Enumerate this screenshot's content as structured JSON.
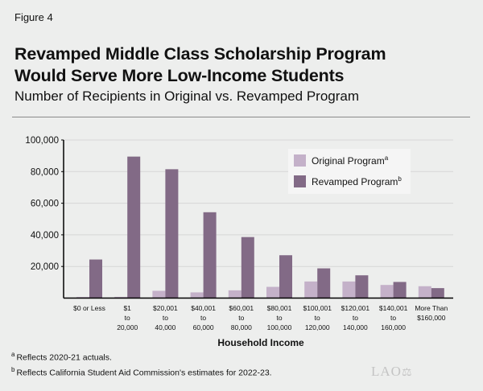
{
  "figure_label": "Figure 4",
  "title_line1": "Revamped Middle Class Scholarship Program",
  "title_line2": "Would Serve More Low-Income Students",
  "subtitle": "Number of Recipients in Original vs. Revamped Program",
  "chart_data": {
    "type": "bar",
    "xlabel": "Household Income",
    "ylabel": "",
    "ylim": [
      0,
      100000
    ],
    "yticks": [
      20000,
      40000,
      60000,
      80000,
      100000
    ],
    "ytick_labels": [
      "20,000",
      "40,000",
      "60,000",
      "80,000",
      "100,000"
    ],
    "grid": true,
    "legend_position": "top-right",
    "categories": [
      [
        "$0 or Less"
      ],
      [
        "$1",
        "to",
        "20,000"
      ],
      [
        "$20,001",
        "to",
        "40,000"
      ],
      [
        "$40,001",
        "to",
        "60,000"
      ],
      [
        "$60,001",
        "to",
        "80,000"
      ],
      [
        "$80,001",
        "to",
        "100,000"
      ],
      [
        "$100,001",
        "to",
        "120,000"
      ],
      [
        "$120,001",
        "to",
        "140,000"
      ],
      [
        "$140,001",
        "to",
        "160,000"
      ],
      [
        "More Than",
        "$160,000"
      ]
    ],
    "series": [
      {
        "name": "Original Program",
        "footnote": "a",
        "color": "#c4b1c9",
        "values": [
          700,
          800,
          4600,
          3600,
          4900,
          7100,
          10500,
          10500,
          8300,
          7500
        ]
      },
      {
        "name": "Revamped Program",
        "footnote": "b",
        "color": "#826a86",
        "values": [
          24400,
          89500,
          81500,
          54300,
          38600,
          27100,
          18800,
          14400,
          10200,
          6300
        ]
      }
    ]
  },
  "footnotes": [
    {
      "marker": "a",
      "text": "Reflects 2020-21 actuals."
    },
    {
      "marker": "b",
      "text": "Reflects California Student Aid Commission's estimates for 2022-23."
    }
  ],
  "logo": "LAO"
}
